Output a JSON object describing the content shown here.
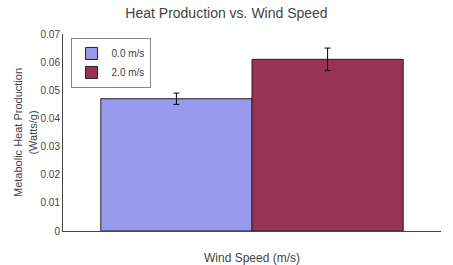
{
  "chart_data": {
    "type": "bar",
    "title": "Heat Production vs. Wind Speed",
    "xlabel": "Wind Speed (m/s)",
    "ylabel": "Metabolic Heat Production\n(Watts/g)",
    "categories": [
      null
    ],
    "series": [
      {
        "name": "0.0 m/s",
        "color": "#9999ee",
        "values": [
          0.047
        ],
        "errors": [
          0.002
        ]
      },
      {
        "name": "2.0 m/s",
        "color": "#993355",
        "values": [
          0.061
        ],
        "errors": [
          0.004
        ]
      }
    ],
    "ylim": [
      0,
      0.07
    ],
    "yticks": [
      0,
      0.01,
      0.02,
      0.03,
      0.04,
      0.05,
      0.06,
      0.07
    ],
    "grid": false,
    "legend": "upper left",
    "tick_labels": "y"
  }
}
